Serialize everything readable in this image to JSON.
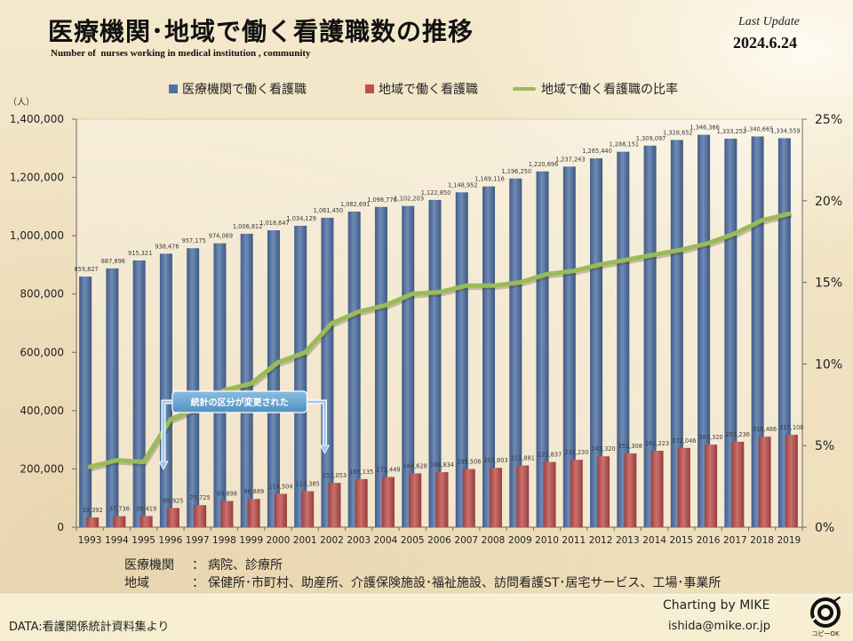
{
  "header": {
    "last_update_label": "Last Update",
    "last_update_date": "2024.6.24"
  },
  "chart_data": {
    "type": "bar",
    "title": "医療機関･地域で働く看護職数の推移",
    "subtitle": "Number of  nurses working in medical institution , community",
    "y_unit": "（人）",
    "xlabel": "",
    "ylabel": "",
    "categories": [
      "1993",
      "1994",
      "1995",
      "1996",
      "1997",
      "1998",
      "1999",
      "2000",
      "2001",
      "2002",
      "2003",
      "2004",
      "2005",
      "2006",
      "2007",
      "2008",
      "2009",
      "2010",
      "2011",
      "2012",
      "2013",
      "2014",
      "2015",
      "2016",
      "2017",
      "2018",
      "2019"
    ],
    "series": [
      {
        "name": "医療機関で働く看護職",
        "type": "bar",
        "axis": "left",
        "color": "#4f72a6",
        "data_labels": true,
        "values": [
          859827,
          887896,
          915321,
          938476,
          957175,
          974069,
          1006812,
          1018647,
          1034129,
          1061450,
          1082691,
          1098776,
          1102203,
          1122850,
          1148952,
          1169116,
          1196250,
          1220696,
          1237243,
          1265440,
          1288151,
          1309097,
          1328652,
          1346366,
          1333252,
          1340665,
          1334559
        ]
      },
      {
        "name": "地域で働く看護職",
        "type": "bar",
        "axis": "left",
        "color": "#c0504d",
        "data_labels": true,
        "values": [
          33392,
          37736,
          38419,
          65925,
          75725,
          89898,
          96889,
          114504,
          123385,
          152053,
          165135,
          172449,
          184628,
          188834,
          199508,
          203803,
          211881,
          223837,
          231230,
          243320,
          253308,
          262223,
          272046,
          283320,
          293236,
          310466,
          317108
        ]
      },
      {
        "name": "地域で働く看護職の比率",
        "type": "line",
        "axis": "right",
        "color": "#9bbb59",
        "values": [
          3.7,
          4.1,
          4.0,
          6.6,
          7.3,
          8.4,
          8.8,
          10.1,
          10.7,
          12.5,
          13.2,
          13.6,
          14.3,
          14.4,
          14.8,
          14.8,
          15.0,
          15.5,
          15.7,
          16.1,
          16.4,
          16.7,
          17.0,
          17.4,
          18.0,
          18.8,
          19.2
        ]
      }
    ],
    "ylim": [
      0,
      1400000
    ],
    "y_ticks": [
      "0",
      "200,000",
      "400,000",
      "600,000",
      "800,000",
      "1,000,000",
      "1,200,000",
      "1,400,000"
    ],
    "y2lim": [
      0,
      25
    ],
    "y2_ticks": [
      "0%",
      "5%",
      "10%",
      "15%",
      "20%",
      "25%"
    ],
    "grid": false,
    "legend_position": "top",
    "annotation": {
      "text": "統計の区分が変更された",
      "color": "#5aa0d4"
    }
  },
  "notes": [
    {
      "term": "医療機関",
      "separator": "：",
      "text": "病院、診療所"
    },
    {
      "term": "地域",
      "separator": "：",
      "text": "保健所･市町村、助産所、介護保険施設･福祉施設、訪問看護ST･居宅サービス、工場･事業所"
    }
  ],
  "footer": {
    "source": "DATA:看護関係統計資料集より",
    "credit": "Charting by MIKE",
    "email": "ishida@mike.or.jp",
    "logo_text": "コピーOK"
  }
}
